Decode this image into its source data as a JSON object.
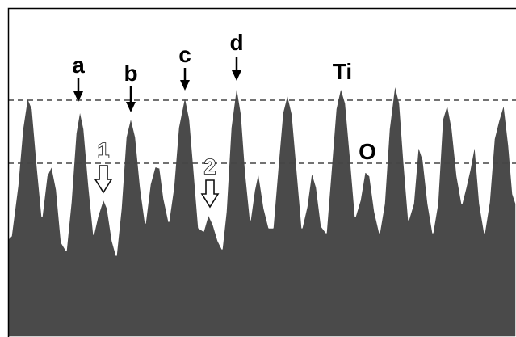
{
  "colors": {
    "fill": "#4a4a4a",
    "edge": "#ffffff",
    "reference_line": "#444444",
    "frame_border": "#000000",
    "background": "#ffffff",
    "label": "#000000"
  },
  "reference_lines": {
    "count": 2,
    "style": "dashed"
  },
  "markers": [
    {
      "label": "a",
      "arrow": "solid-down"
    },
    {
      "label": "b",
      "arrow": "solid-down"
    },
    {
      "label": "c",
      "arrow": "solid-down"
    },
    {
      "label": "d",
      "arrow": "solid-down"
    },
    {
      "label": "1",
      "arrow": "hollow-down"
    },
    {
      "label": "2",
      "arrow": "hollow-down"
    }
  ],
  "species": {
    "ti": "Ti",
    "o": "O"
  }
}
